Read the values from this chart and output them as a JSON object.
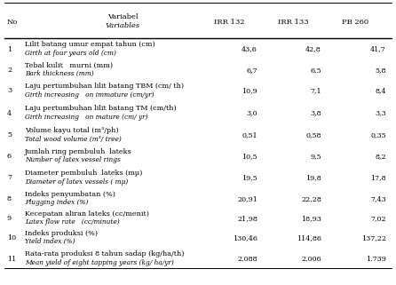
{
  "headers_col1": "No",
  "headers_col2a": "Variabel",
  "headers_col2b": "Variables",
  "headers_col3": "IRR 132",
  "headers_col4": "IRR 133",
  "headers_col5": "PB 260",
  "rows": [
    {
      "no": "1",
      "var_line1": "Lilit batang umur empat tahun (cm)",
      "var_line2": "Girth at four years old (cm)",
      "irr132": "43,6",
      "irr133": "42,8",
      "pb260": "41,7"
    },
    {
      "no": "2",
      "var_line1": "Tebal kulit   murni (mm)",
      "var_line2": "Bark thickness (mm)",
      "irr132": "6,7",
      "irr133": "6,5",
      "pb260": "5,8"
    },
    {
      "no": "3",
      "var_line1": "Laju pertumbuhan lilit batang TBM (cm/ th)",
      "var_line2": "Girth increasing   on immature (cm/yr)",
      "irr132": "10,9",
      "irr133": "7,1",
      "pb260": "8,4"
    },
    {
      "no": "4",
      "var_line1": "Laju pertumbuhan lilit batang TM (cm/th)",
      "var_line2": "Girth increasing   on mature (cm/ yr)",
      "irr132": "3,0",
      "irr133": "3,8",
      "pb260": "3,3"
    },
    {
      "no": "5",
      "var_line1": "Volume kayu total (m³/ph)",
      "var_line2": "Total wood volume (m³/ tree)",
      "irr132": "0,51",
      "irr133": "0,58",
      "pb260": "0,35"
    },
    {
      "no": "6",
      "var_line1": "Jumlah ring pembuluh  lateks",
      "var_line2": "Number of latex vessel rings",
      "irr132": "10,5",
      "irr133": "9,5",
      "pb260": "8,2"
    },
    {
      "no": "7",
      "var_line1": "Diameter pembuluh  lateks (mμ)",
      "var_line2": "Diameter of latex vessels ( mμ)",
      "irr132": "19,5",
      "irr133": "19,8",
      "pb260": "17,8"
    },
    {
      "no": "8",
      "var_line1": "Indeks penyumbatan (%)",
      "var_line2": "Plugging index (%)",
      "irr132": "20,91",
      "irr133": "22,28",
      "pb260": "7,43"
    },
    {
      "no": "9",
      "var_line1": "Kecepatan aliran lateks (cc/menit)",
      "var_line2": "Latex flow rate   (cc/minute)",
      "irr132": "21,98",
      "irr133": "18,93",
      "pb260": "7,02"
    },
    {
      "no": "10",
      "var_line1": "Indeks produksi (%)",
      "var_line2": "Yield index (%)",
      "irr132": "130,46",
      "irr133": "114,86",
      "pb260": "137,22"
    },
    {
      "no": "11",
      "var_line1": "Rata-rata produksi 8 tahun sadap (kg/ha/th)",
      "var_line2": "Mean yield of eight tapping years (kg/ ha/yr)",
      "irr132": "2.088",
      "irr133": "2.006",
      "pb260": "1.739"
    }
  ],
  "bg_color": "#ffffff",
  "text_color": "#000000",
  "line_color": "#000000",
  "fig_width": 4.46,
  "fig_height": 3.21,
  "dpi": 100
}
